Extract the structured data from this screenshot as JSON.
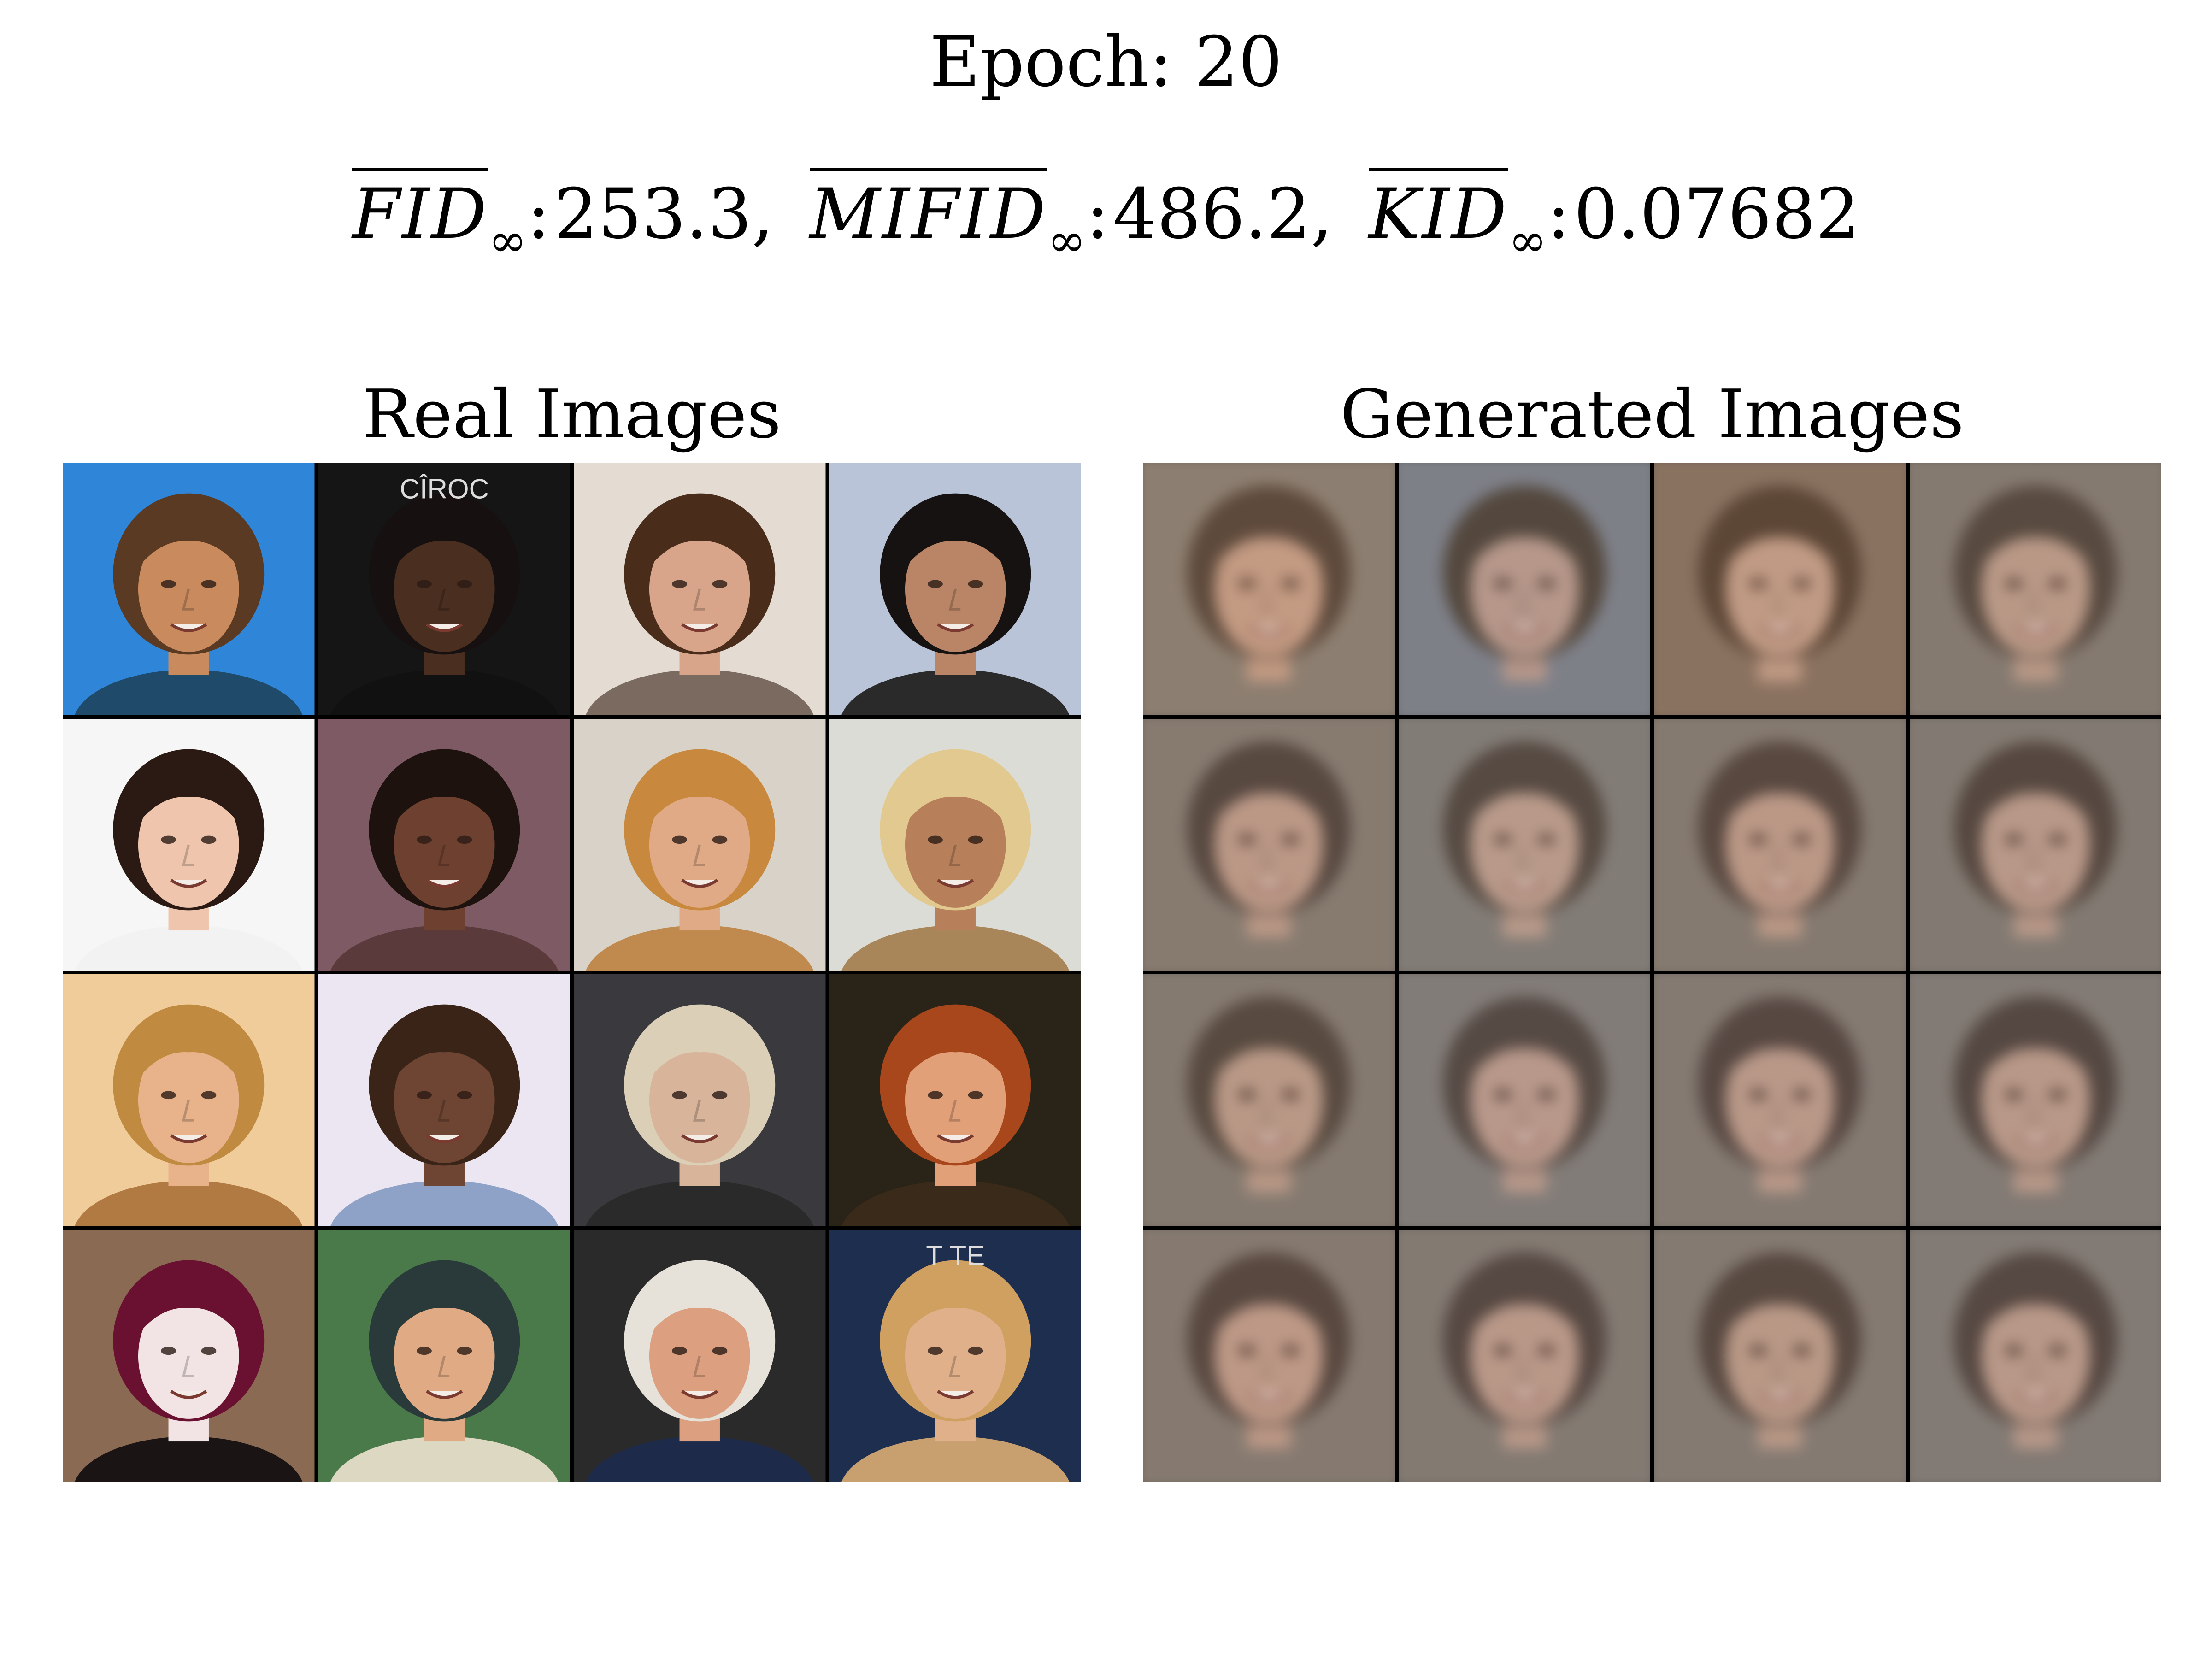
{
  "header": {
    "epoch_label": "Epoch:",
    "epoch_value": "20"
  },
  "metrics": [
    {
      "name": "FID",
      "subscript": "∞",
      "value": "253.3",
      "separator": ","
    },
    {
      "name": "MIFID",
      "subscript": "∞",
      "value": "486.2",
      "separator": ","
    },
    {
      "name": "KID",
      "subscript": "∞",
      "value": "0.07682",
      "separator": ""
    }
  ],
  "panels": {
    "real": {
      "title": "Real Images",
      "tiles": [
        {
          "bg": "#2f86d8",
          "skin": "#c98a5e",
          "hair": "#5a3a22",
          "shirt": "#1f4a6a",
          "text": ""
        },
        {
          "bg": "#151515",
          "skin": "#4a2e1f",
          "hair": "#161010",
          "shirt": "#111111",
          "text": "CÎROC"
        },
        {
          "bg": "#e4dcd2",
          "skin": "#d9a58a",
          "hair": "#4a2c1b",
          "shirt": "#7a6a60",
          "text": ""
        },
        {
          "bg": "#b9c4d8",
          "skin": "#b98566",
          "hair": "#161212",
          "shirt": "#2a2a2a",
          "text": ""
        },
        {
          "bg": "#f6f6f6",
          "skin": "#efc6ad",
          "hair": "#2b1a14",
          "shirt": "#f2f2f2",
          "text": ""
        },
        {
          "bg": "#7d5a64",
          "skin": "#6e4030",
          "hair": "#1d120e",
          "shirt": "#5a3a3a",
          "text": ""
        },
        {
          "bg": "#d8d2c8",
          "skin": "#e0aa86",
          "hair": "#c8893e",
          "shirt": "#c08a4e",
          "text": ""
        },
        {
          "bg": "#dcdcd6",
          "skin": "#b8805a",
          "hair": "#e1c98f",
          "shirt": "#a9855a",
          "text": ""
        },
        {
          "bg": "#f0cc9a",
          "skin": "#e8b28a",
          "hair": "#c08a40",
          "shirt": "#b07a42",
          "text": ""
        },
        {
          "bg": "#ece6f2",
          "skin": "#6e4433",
          "hair": "#3a2418",
          "shirt": "#8ea2c8",
          "text": ""
        },
        {
          "bg": "#3a3a3e",
          "skin": "#d8b49a",
          "hair": "#dccfb8",
          "shirt": "#2a2a2a",
          "text": ""
        },
        {
          "bg": "#2a2418",
          "skin": "#e2a078",
          "hair": "#a8461c",
          "shirt": "#3a2a1a",
          "text": ""
        },
        {
          "bg": "#8a6a52",
          "skin": "#f2e4e4",
          "hair": "#6a1030",
          "shirt": "#1a1414",
          "text": ""
        },
        {
          "bg": "#4a7a4a",
          "skin": "#e0aa84",
          "hair": "#2a3a3a",
          "shirt": "#dcd8c2",
          "text": ""
        },
        {
          "bg": "#2a2a2a",
          "skin": "#dca080",
          "hair": "#e6e2da",
          "shirt": "#1e2a4a",
          "text": ""
        },
        {
          "bg": "#1e2e4e",
          "skin": "#e0b08a",
          "hair": "#d0a060",
          "shirt": "#c8a070",
          "text": "T TE"
        }
      ]
    },
    "generated": {
      "title": "Generated Images",
      "tiles": [
        {
          "bg": "#8c7e70",
          "skin": "#c39a82",
          "hair": "#5e4a3c"
        },
        {
          "bg": "#7e8088",
          "skin": "#b6978a",
          "hair": "#54483e"
        },
        {
          "bg": "#8a7260",
          "skin": "#c09a84",
          "hair": "#5c4636"
        },
        {
          "bg": "#857a70",
          "skin": "#b99886",
          "hair": "#584a40"
        },
        {
          "bg": "#877b70",
          "skin": "#bb9886",
          "hair": "#574840"
        },
        {
          "bg": "#827c76",
          "skin": "#b99a8a",
          "hair": "#564a42"
        },
        {
          "bg": "#857a70",
          "skin": "#bb9886",
          "hair": "#584840"
        },
        {
          "bg": "#827a72",
          "skin": "#b89888",
          "hair": "#564840"
        },
        {
          "bg": "#857a70",
          "skin": "#b99886",
          "hair": "#584a40"
        },
        {
          "bg": "#827c78",
          "skin": "#b8988a",
          "hair": "#564a44"
        },
        {
          "bg": "#847a72",
          "skin": "#b99888",
          "hair": "#574842"
        },
        {
          "bg": "#827a74",
          "skin": "#b89888",
          "hair": "#554842"
        },
        {
          "bg": "#867a70",
          "skin": "#bd9886",
          "hair": "#584840"
        },
        {
          "bg": "#837a72",
          "skin": "#b99888",
          "hair": "#564842"
        },
        {
          "bg": "#847a72",
          "skin": "#b99886",
          "hair": "#574840"
        },
        {
          "bg": "#827a74",
          "skin": "#b89888",
          "hair": "#564842"
        }
      ]
    }
  }
}
